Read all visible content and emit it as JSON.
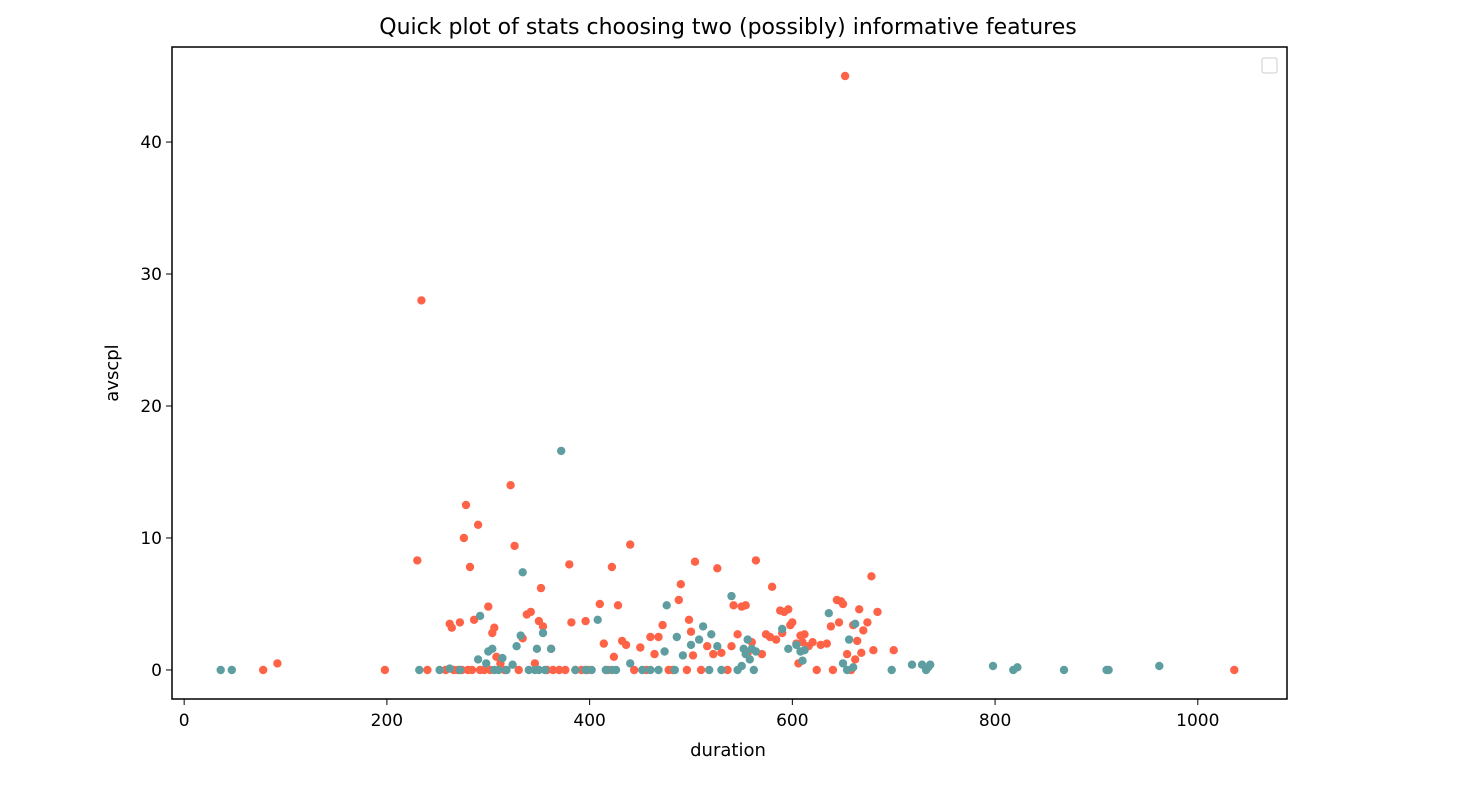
{
  "chart_data": {
    "type": "scatter",
    "title": "Quick plot of stats choosing two (possibly) informative features",
    "xlabel": "duration",
    "ylabel": "avscpl",
    "xlim": [
      -12,
      1088
    ],
    "ylim": [
      -2.2,
      47.2
    ],
    "xticks": [
      0,
      200,
      400,
      600,
      800,
      1000
    ],
    "yticks": [
      0,
      10,
      20,
      30,
      40
    ],
    "grid": false,
    "legend": "top-right",
    "colors": {
      "series_1": "#ff6347",
      "series_2": "#5f9ea0"
    },
    "series": [
      {
        "color": "#ff6347",
        "points": [
          [
            78,
            0
          ],
          [
            92,
            0.5
          ],
          [
            198,
            0
          ],
          [
            230,
            8.3
          ],
          [
            234,
            28
          ],
          [
            240,
            0
          ],
          [
            258,
            0
          ],
          [
            262,
            3.5
          ],
          [
            264,
            3.2
          ],
          [
            266,
            0
          ],
          [
            270,
            0
          ],
          [
            272,
            3.6
          ],
          [
            274,
            0
          ],
          [
            276,
            10
          ],
          [
            278,
            12.5
          ],
          [
            280,
            0
          ],
          [
            282,
            7.8
          ],
          [
            284,
            0
          ],
          [
            286,
            3.8
          ],
          [
            290,
            11
          ],
          [
            292,
            0
          ],
          [
            296,
            0
          ],
          [
            300,
            4.8
          ],
          [
            302,
            0
          ],
          [
            304,
            2.8
          ],
          [
            306,
            3.2
          ],
          [
            308,
            1
          ],
          [
            312,
            0.5
          ],
          [
            316,
            0
          ],
          [
            322,
            14
          ],
          [
            326,
            9.4
          ],
          [
            330,
            0
          ],
          [
            334,
            2.4
          ],
          [
            338,
            4.2
          ],
          [
            342,
            4.4
          ],
          [
            346,
            0.5
          ],
          [
            350,
            3.7
          ],
          [
            352,
            6.2
          ],
          [
            354,
            3.3
          ],
          [
            358,
            0
          ],
          [
            362,
            1.6
          ],
          [
            364,
            0
          ],
          [
            370,
            0
          ],
          [
            376,
            0
          ],
          [
            380,
            8
          ],
          [
            382,
            3.6
          ],
          [
            386,
            0
          ],
          [
            392,
            0
          ],
          [
            396,
            3.7
          ],
          [
            398,
            0
          ],
          [
            410,
            5
          ],
          [
            414,
            2
          ],
          [
            418,
            0
          ],
          [
            422,
            7.8
          ],
          [
            424,
            1
          ],
          [
            428,
            4.9
          ],
          [
            432,
            2.2
          ],
          [
            436,
            1.9
          ],
          [
            440,
            9.5
          ],
          [
            444,
            0
          ],
          [
            450,
            1.7
          ],
          [
            456,
            0
          ],
          [
            460,
            2.5
          ],
          [
            464,
            1.2
          ],
          [
            468,
            2.5
          ],
          [
            472,
            3.4
          ],
          [
            478,
            0
          ],
          [
            482,
            0
          ],
          [
            488,
            5.3
          ],
          [
            490,
            6.5
          ],
          [
            496,
            0
          ],
          [
            498,
            3.8
          ],
          [
            500,
            2.9
          ],
          [
            502,
            1.1
          ],
          [
            504,
            8.2
          ],
          [
            510,
            0
          ],
          [
            516,
            1.8
          ],
          [
            522,
            1.2
          ],
          [
            526,
            7.7
          ],
          [
            530,
            1.3
          ],
          [
            536,
            0
          ],
          [
            540,
            1.8
          ],
          [
            542,
            4.9
          ],
          [
            546,
            2.7
          ],
          [
            550,
            4.8
          ],
          [
            554,
            4.9
          ],
          [
            556,
            1.3
          ],
          [
            560,
            2.1
          ],
          [
            564,
            8.3
          ],
          [
            570,
            1.2
          ],
          [
            574,
            2.7
          ],
          [
            578,
            2.5
          ],
          [
            580,
            6.3
          ],
          [
            584,
            2.3
          ],
          [
            588,
            4.5
          ],
          [
            590,
            2.8
          ],
          [
            592,
            4.4
          ],
          [
            596,
            4.6
          ],
          [
            598,
            3.4
          ],
          [
            600,
            3.6
          ],
          [
            604,
            2
          ],
          [
            606,
            0.5
          ],
          [
            608,
            2.6
          ],
          [
            610,
            2.1
          ],
          [
            612,
            2.7
          ],
          [
            616,
            1.8
          ],
          [
            620,
            2.1
          ],
          [
            624,
            0
          ],
          [
            628,
            1.9
          ],
          [
            634,
            2
          ],
          [
            638,
            3.3
          ],
          [
            640,
            0
          ],
          [
            644,
            5.3
          ],
          [
            646,
            3.6
          ],
          [
            648,
            5.2
          ],
          [
            650,
            5
          ],
          [
            652,
            45
          ],
          [
            654,
            1.2
          ],
          [
            658,
            0
          ],
          [
            660,
            3.4
          ],
          [
            662,
            0.8
          ],
          [
            664,
            2.2
          ],
          [
            666,
            4.6
          ],
          [
            668,
            1.3
          ],
          [
            670,
            3
          ],
          [
            674,
            3.6
          ],
          [
            678,
            7.1
          ],
          [
            680,
            1.5
          ],
          [
            684,
            4.4
          ],
          [
            700,
            1.5
          ],
          [
            1036,
            0
          ]
        ]
      },
      {
        "color": "#5f9ea0",
        "points": [
          [
            36,
            0
          ],
          [
            47,
            0
          ],
          [
            232,
            0
          ],
          [
            252,
            0
          ],
          [
            262,
            0.1
          ],
          [
            272,
            0
          ],
          [
            290,
            0.8
          ],
          [
            292,
            4.1
          ],
          [
            298,
            0.5
          ],
          [
            300,
            1.4
          ],
          [
            304,
            1.6
          ],
          [
            306,
            0
          ],
          [
            310,
            0
          ],
          [
            314,
            0.9
          ],
          [
            318,
            0
          ],
          [
            324,
            0.4
          ],
          [
            328,
            1.8
          ],
          [
            332,
            2.6
          ],
          [
            334,
            7.4
          ],
          [
            340,
            0
          ],
          [
            346,
            0
          ],
          [
            348,
            1.6
          ],
          [
            350,
            0
          ],
          [
            354,
            2.8
          ],
          [
            356,
            0
          ],
          [
            362,
            1.6
          ],
          [
            372,
            16.6
          ],
          [
            386,
            0
          ],
          [
            396,
            0
          ],
          [
            402,
            0
          ],
          [
            408,
            3.8
          ],
          [
            416,
            0
          ],
          [
            422,
            0
          ],
          [
            426,
            0
          ],
          [
            440,
            0.5
          ],
          [
            452,
            0
          ],
          [
            460,
            0
          ],
          [
            468,
            0
          ],
          [
            474,
            1.4
          ],
          [
            476,
            4.9
          ],
          [
            484,
            0
          ],
          [
            486,
            2.5
          ],
          [
            492,
            1.1
          ],
          [
            500,
            1.9
          ],
          [
            508,
            2.3
          ],
          [
            512,
            3.3
          ],
          [
            518,
            0
          ],
          [
            520,
            2.7
          ],
          [
            526,
            1.8
          ],
          [
            530,
            0
          ],
          [
            540,
            5.6
          ],
          [
            546,
            0
          ],
          [
            550,
            0.3
          ],
          [
            552,
            1.6
          ],
          [
            554,
            1.2
          ],
          [
            556,
            2.3
          ],
          [
            558,
            0.8
          ],
          [
            560,
            1.6
          ],
          [
            562,
            0
          ],
          [
            564,
            1.4
          ],
          [
            590,
            3.1
          ],
          [
            596,
            1.6
          ],
          [
            604,
            1.9
          ],
          [
            608,
            1.4
          ],
          [
            610,
            0.7
          ],
          [
            612,
            1.5
          ],
          [
            636,
            4.3
          ],
          [
            650,
            0.5
          ],
          [
            654,
            0
          ],
          [
            656,
            2.3
          ],
          [
            660,
            0.2
          ],
          [
            662,
            3.5
          ],
          [
            698,
            0
          ],
          [
            718,
            0.4
          ],
          [
            728,
            0.4
          ],
          [
            732,
            0
          ],
          [
            734,
            0.2
          ],
          [
            736,
            0.4
          ],
          [
            798,
            0.3
          ],
          [
            818,
            0
          ],
          [
            822,
            0.2
          ],
          [
            868,
            0
          ],
          [
            910,
            0
          ],
          [
            912,
            0
          ],
          [
            962,
            0.3
          ]
        ]
      }
    ]
  }
}
